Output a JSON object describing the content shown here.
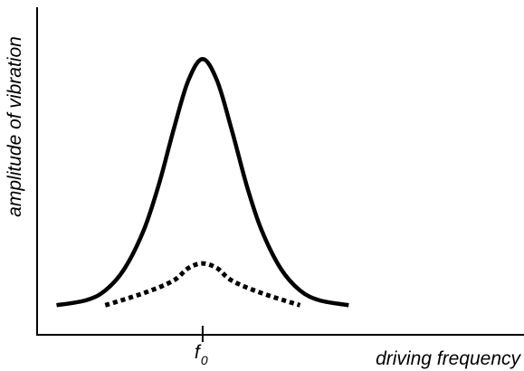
{
  "chart_data": {
    "type": "line",
    "title": "",
    "xlabel": "driving frequency",
    "ylabel": "amplitude of vibration",
    "x_ticks": [
      {
        "label": "f",
        "subscript": "0",
        "x": 0
      }
    ],
    "xlim": [
      -1.7,
      3.3
    ],
    "ylim": [
      -0.12,
      1.21
    ],
    "grid": false,
    "legend": "none",
    "series": [
      {
        "style": "solid",
        "color": "#000000",
        "x": [
          -1.5,
          -1.2,
          -1.0,
          -0.8,
          -0.6,
          -0.45,
          -0.3,
          -0.15,
          0,
          0.15,
          0.3,
          0.45,
          0.6,
          0.8,
          1.0,
          1.2,
          1.5
        ],
        "y": [
          0.0,
          0.02,
          0.06,
          0.15,
          0.31,
          0.49,
          0.71,
          0.91,
          1.0,
          0.91,
          0.71,
          0.49,
          0.31,
          0.15,
          0.06,
          0.02,
          0.0
        ]
      },
      {
        "style": "dotted",
        "color": "#000000",
        "x": [
          -1.0,
          -0.6,
          -0.3,
          -0.15,
          0,
          0.15,
          0.3,
          0.6,
          1.0
        ],
        "y": [
          0.0,
          0.05,
          0.1,
          0.15,
          0.17,
          0.15,
          0.1,
          0.05,
          0.0
        ]
      }
    ]
  }
}
